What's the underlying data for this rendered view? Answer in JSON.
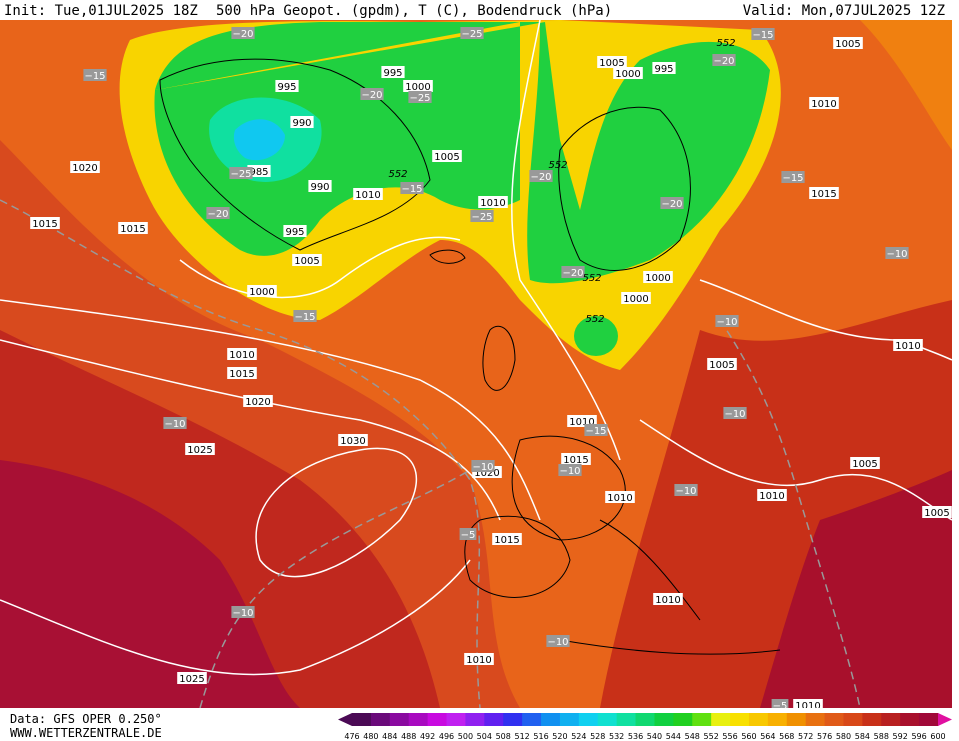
{
  "header": {
    "init": "Init: Tue,01JUL2025 18Z",
    "title": "500 hPa Geopot. (gpdm), T (C), Bodendruck (hPa)",
    "valid": "Valid: Mon,07JUL2025 12Z"
  },
  "footer": {
    "source": "Data: GFS OPER 0.250°",
    "site": "WWW.WETTERZENTRALE.DE"
  },
  "colorbar": {
    "labels": [
      476,
      480,
      484,
      488,
      492,
      496,
      500,
      504,
      508,
      512,
      516,
      520,
      524,
      528,
      532,
      536,
      540,
      544,
      548,
      552,
      556,
      560,
      564,
      568,
      572,
      576,
      580,
      584,
      588,
      592,
      596,
      600
    ],
    "colors": [
      "#4b0a55",
      "#6a0a7a",
      "#8a0aa0",
      "#a80ac0",
      "#c80ae0",
      "#c020f0",
      "#9020f0",
      "#6020f0",
      "#3030f0",
      "#2060f0",
      "#1090f0",
      "#10b0f0",
      "#10d0f0",
      "#10e0d0",
      "#10e0a0",
      "#10d870",
      "#10d040",
      "#20d020",
      "#60e010",
      "#e8f010",
      "#f8e000",
      "#f8c800",
      "#f8b000",
      "#f09000",
      "#e87010",
      "#e05a18",
      "#d84818",
      "#c83018",
      "#b82020",
      "#a8102c",
      "#a00838"
    ]
  },
  "pressure_labels": [
    "995",
    "990",
    "985",
    "990",
    "995",
    "1005",
    "1000",
    "1010",
    "1005",
    "1000",
    "995",
    "1010",
    "1005",
    "1000",
    "995",
    "1000",
    "1000",
    "1010",
    "1005",
    "1015",
    "1010",
    "1005",
    "1005",
    "1010",
    "1005",
    "1020",
    "1015",
    "1015",
    "1010",
    "1015",
    "1020",
    "1025",
    "1030",
    "1020",
    "1015",
    "1010",
    "1010",
    "1015",
    "1010",
    "1010",
    "1025",
    "1010"
  ],
  "temperature_labels": [
    "−20",
    "−25",
    "−15",
    "−20",
    "−25",
    "−25",
    "−20",
    "−15",
    "−25",
    "−20",
    "−20",
    "−20",
    "−15",
    "−15",
    "−10",
    "−15",
    "−20",
    "−10",
    "−10",
    "−10",
    "−15",
    "−10",
    "−10",
    "−10",
    "−5",
    "−10",
    "−10",
    "−5"
  ],
  "geopotential_labels": [
    "552",
    "552",
    "552",
    "552",
    "552"
  ]
}
